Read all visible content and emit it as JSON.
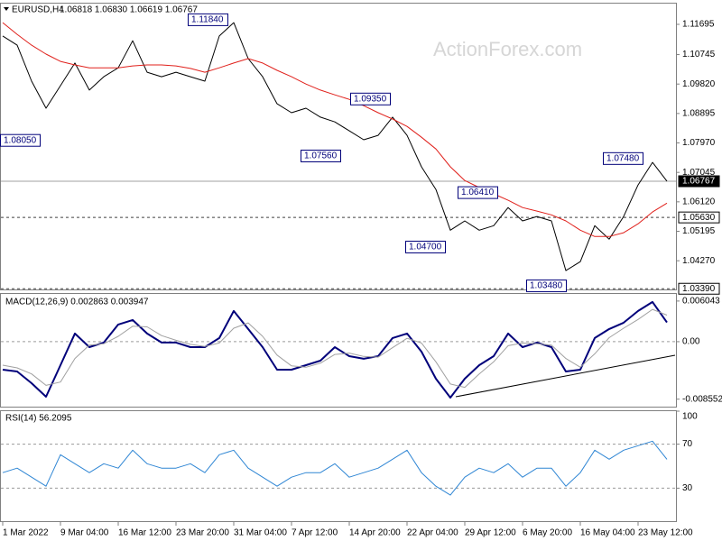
{
  "chart_data": [
    {
      "type": "line",
      "title": "EURUSD,H4",
      "subtitle": "1.06818 1.06830 1.06619 1.06767",
      "watermark": "ActionForex.com",
      "ylim": [
        1.0334,
        1.1246
      ],
      "yticks": [
        1.11695,
        1.10745,
        {
          "value": 1.0982,
          "label": "1.09820"
        },
        1.08895,
        {
          "value": 1.0797,
          "label": "1.07970"
        },
        1.07045,
        {
          "value": 1.0612,
          "label": "1.06120"
        },
        1.05195,
        {
          "value": 1.0427,
          "label": "1.04270"
        }
      ],
      "series": [
        {
          "name": "EURUSD",
          "color": "#000000",
          "values": [
            1.1133,
            1.1104,
            1.0991,
            1.0906,
            1.0977,
            1.1048,
            1.0963,
            1.1005,
            1.1033,
            1.1118,
            1.1019,
            1.1005,
            1.1019,
            1.1005,
            1.0991,
            1.1133,
            1.1175,
            1.1062,
            1.1005,
            1.092,
            1.0892,
            1.0906,
            1.0878,
            1.0863,
            1.0835,
            1.0807,
            1.0821,
            1.0878,
            1.0821,
            1.0722,
            1.0651,
            1.0523,
            1.0552,
            1.0523,
            1.0537,
            1.0594,
            1.0552,
            1.0566,
            1.0552,
            1.0396,
            1.0424,
            1.0537,
            1.0495,
            1.0566,
            1.0665,
            1.0736,
            1.0677
          ]
        },
        {
          "name": "MA",
          "color": "#e0201b",
          "values": [
            1.1175,
            1.1138,
            1.1104,
            1.1076,
            1.1053,
            1.1042,
            1.1033,
            1.1033,
            1.1033,
            1.1039,
            1.1042,
            1.1042,
            1.1039,
            1.1031,
            1.1019,
            1.1033,
            1.1048,
            1.1062,
            1.1048,
            1.1025,
            1.1005,
            1.0982,
            1.0963,
            1.0948,
            1.0934,
            1.0914,
            1.0892,
            1.0872,
            1.0849,
            1.0815,
            1.0778,
            1.0722,
            1.0679,
            1.0657,
            1.0637,
            1.0617,
            1.0594,
            1.0583,
            1.0571,
            1.0552,
            1.0523,
            1.0503,
            1.0503,
            1.0515,
            1.0543,
            1.058,
            1.0608
          ]
        }
      ],
      "levels": [
        {
          "value": 1.06767,
          "label": "1.06767",
          "style": "solid"
        },
        {
          "value": 1.0563,
          "label": "1.05630",
          "style": "dashed"
        },
        {
          "value": 1.0339,
          "label": "1.03390",
          "style": "dashed"
        }
      ],
      "annotations": [
        {
          "value": 1.1184,
          "label": "1.11840"
        },
        {
          "value": 1.0935,
          "label": "1.09350"
        },
        {
          "value": 1.0805,
          "label": "1.08050"
        },
        {
          "value": 1.0756,
          "label": "1.07560"
        },
        {
          "value": 1.0641,
          "label": "1.06410"
        },
        {
          "value": 1.047,
          "label": "1.04700"
        },
        {
          "value": 1.0348,
          "label": "1.03480"
        },
        {
          "value": 1.0748,
          "label": "1.07480"
        }
      ]
    },
    {
      "type": "line",
      "title": "MACD(12,26,9) 0.002863 0.003947",
      "ylim": [
        -0.0098,
        0.0071
      ],
      "yticks": [
        0.006043,
        {
          "value": 0,
          "label": "0.00"
        },
        -0.008552
      ],
      "grid": "dashed",
      "series": [
        {
          "name": "MACD",
          "color": "#00007a",
          "values": [
            -0.00416,
            -0.00443,
            -0.00618,
            -0.00819,
            -0.00349,
            0.00121,
            -0.00081,
            -0.00013,
            0.00255,
            0.00322,
            0.00121,
            -0.00013,
            -0.00013,
            -0.00081,
            -0.00081,
            0.00054,
            0.00457,
            0.00188,
            -0.00081,
            -0.00416,
            -0.00416,
            -0.00349,
            -0.00282,
            -0.00081,
            -0.00215,
            -0.00255,
            -0.00215,
            0.00054,
            0.00121,
            -0.00148,
            -0.00551,
            -0.00833,
            -0.00551,
            -0.00349,
            -0.00215,
            0.00121,
            -0.00081,
            -0.00013,
            -0.00081,
            -0.00443,
            -0.00416,
            0.00054,
            0.00188,
            0.00282,
            0.00457,
            0.00591,
            0.00286
          ]
        },
        {
          "name": "Signal",
          "color": "#a0a0a0",
          "values": [
            -0.0035,
            -0.0039,
            -0.0048,
            -0.0065,
            -0.006,
            -0.0025,
            -0.0005,
            -0.0003,
            0.0008,
            0.0023,
            0.0022,
            0.0009,
            0.0002,
            -0.0004,
            -0.0007,
            -0.0002,
            0.002,
            0.0028,
            0.0008,
            -0.002,
            -0.0036,
            -0.0038,
            -0.0032,
            -0.0019,
            -0.0017,
            -0.0022,
            -0.0023,
            -0.0009,
            0.0005,
            -0.0002,
            -0.003,
            -0.0063,
            -0.0068,
            -0.0048,
            -0.003,
            -0.0006,
            -0.0002,
            -0.0003,
            -0.0005,
            -0.0025,
            -0.0038,
            -0.0018,
            0.0006,
            0.002,
            0.0033,
            0.0048,
            0.00395
          ]
        }
      ]
    },
    {
      "type": "line",
      "title": "RSI(14) 56.2095",
      "ylim": [
        0,
        100
      ],
      "yticks": [
        100,
        70,
        30
      ],
      "grid": "dashed",
      "categories": [
        "1 Mar 2022",
        null,
        null,
        null,
        "9 Mar 04:00",
        null,
        null,
        null,
        "16 Mar 12:00",
        null,
        null,
        null,
        "23 Mar 20:00",
        null,
        null,
        null,
        "31 Mar 04:00",
        null,
        null,
        null,
        "7 Apr 12:00",
        null,
        null,
        null,
        "14 Apr 20:00",
        null,
        null,
        null,
        "22 Apr 04:00",
        null,
        null,
        null,
        "29 Apr 12:00",
        null,
        null,
        null,
        "6 May 20:00",
        null,
        null,
        null,
        "16 May 04:00",
        null,
        null,
        null,
        "23 May 12:00",
        null,
        null
      ],
      "series": [
        {
          "name": "RSI",
          "color": "#2f86d4",
          "values": [
            44.1,
            48.2,
            40,
            31.8,
            60.4,
            52.2,
            44.1,
            52.2,
            48.2,
            64.5,
            52.2,
            48.2,
            48.2,
            52.2,
            44.1,
            60.4,
            64.5,
            48.2,
            40,
            31.8,
            40,
            44.1,
            44.1,
            52.2,
            40,
            44.1,
            48.2,
            56.3,
            64.5,
            44.1,
            31.8,
            23.7,
            40,
            48.2,
            44.1,
            52.2,
            40,
            48.2,
            48.2,
            31.8,
            44.1,
            64.5,
            56.3,
            64.5,
            68.6,
            72.7,
            56.2
          ]
        }
      ]
    }
  ]
}
